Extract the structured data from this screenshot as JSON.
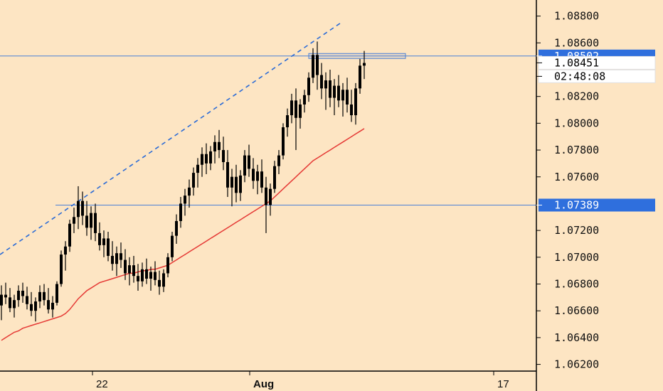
{
  "chart_data": {
    "type": "candlestick",
    "symbol": "",
    "y_ticks": [
      "1.08800",
      "1.08600",
      "1.08200",
      "1.08000",
      "1.07800",
      "1.07600",
      "1.07200",
      "1.07000",
      "1.06800",
      "1.06600",
      "1.06400",
      "1.06200"
    ],
    "x_ticks": [
      "22",
      "Aug",
      "17"
    ],
    "ylim": [
      1.0615,
      1.0892
    ],
    "price_levels": {
      "current_price": "1.08451",
      "countdown": "02:48:08",
      "resistance": "1.08502",
      "support": "1.07389"
    },
    "candles": [
      [
        1.0664,
        1.0679,
        1.0653,
        1.0672
      ],
      [
        1.0672,
        1.0681,
        1.0665,
        1.067
      ],
      [
        1.067,
        1.0677,
        1.0659,
        1.0662
      ],
      [
        1.0662,
        1.0672,
        1.0655,
        1.0668
      ],
      [
        1.0668,
        1.0679,
        1.0663,
        1.0675
      ],
      [
        1.0675,
        1.0681,
        1.0666,
        1.0671
      ],
      [
        1.0671,
        1.0678,
        1.0661,
        1.0665
      ],
      [
        1.0665,
        1.0674,
        1.0656,
        1.066
      ],
      [
        1.066,
        1.067,
        1.0652,
        1.0667
      ],
      [
        1.0667,
        1.0679,
        1.0662,
        1.0674
      ],
      [
        1.0674,
        1.068,
        1.0664,
        1.0668
      ],
      [
        1.0668,
        1.0677,
        1.0658,
        1.0661
      ],
      [
        1.0661,
        1.0671,
        1.0655,
        1.0666
      ],
      [
        1.0666,
        1.0682,
        1.0664,
        1.068
      ],
      [
        1.068,
        1.0705,
        1.0678,
        1.0702
      ],
      [
        1.0702,
        1.0712,
        1.069,
        1.0708
      ],
      [
        1.0708,
        1.0728,
        1.0704,
        1.0725
      ],
      [
        1.0725,
        1.0737,
        1.0718,
        1.073
      ],
      [
        1.073,
        1.0753,
        1.0721,
        1.0742
      ],
      [
        1.0742,
        1.0749,
        1.0724,
        1.0731
      ],
      [
        1.0731,
        1.0742,
        1.0716,
        1.0722
      ],
      [
        1.0722,
        1.0738,
        1.0713,
        1.0733
      ],
      [
        1.0733,
        1.074,
        1.0712,
        1.0718
      ],
      [
        1.0718,
        1.0726,
        1.0705,
        1.0709
      ],
      [
        1.0709,
        1.072,
        1.07,
        1.0714
      ],
      [
        1.0714,
        1.0719,
        1.0697,
        1.0701
      ],
      [
        1.0701,
        1.0712,
        1.069,
        1.0695
      ],
      [
        1.0695,
        1.0708,
        1.0686,
        1.0703
      ],
      [
        1.0703,
        1.0711,
        1.0692,
        1.0698
      ],
      [
        1.0698,
        1.0706,
        1.0683,
        1.0688
      ],
      [
        1.0688,
        1.07,
        1.0679,
        1.0694
      ],
      [
        1.0694,
        1.0701,
        1.0681,
        1.0686
      ],
      [
        1.0686,
        1.0695,
        1.0675,
        1.0682
      ],
      [
        1.0682,
        1.0696,
        1.0678,
        1.0691
      ],
      [
        1.0691,
        1.0699,
        1.068,
        1.0684
      ],
      [
        1.0684,
        1.0693,
        1.0675,
        1.0689
      ],
      [
        1.0689,
        1.0697,
        1.0679,
        1.0683
      ],
      [
        1.0683,
        1.069,
        1.0672,
        1.0678
      ],
      [
        1.0678,
        1.0691,
        1.0674,
        1.0688
      ],
      [
        1.0688,
        1.0703,
        1.0685,
        1.07
      ],
      [
        1.07,
        1.0719,
        1.0697,
        1.0716
      ],
      [
        1.0716,
        1.0732,
        1.071,
        1.0727
      ],
      [
        1.0727,
        1.0745,
        1.0722,
        1.074
      ],
      [
        1.074,
        1.0751,
        1.0731,
        1.0746
      ],
      [
        1.0746,
        1.0758,
        1.0737,
        1.0752
      ],
      [
        1.0752,
        1.0767,
        1.0746,
        1.0763
      ],
      [
        1.0763,
        1.0774,
        1.0752,
        1.0769
      ],
      [
        1.0769,
        1.0782,
        1.076,
        1.0777
      ],
      [
        1.0777,
        1.0785,
        1.0762,
        1.077
      ],
      [
        1.077,
        1.0783,
        1.0765,
        1.0779
      ],
      [
        1.0779,
        1.0791,
        1.077,
        1.0786
      ],
      [
        1.0786,
        1.0795,
        1.0774,
        1.078
      ],
      [
        1.078,
        1.079,
        1.0765,
        1.0771
      ],
      [
        1.0771,
        1.078,
        1.0745,
        1.0752
      ],
      [
        1.0752,
        1.0766,
        1.0738,
        1.076
      ],
      [
        1.076,
        1.0769,
        1.0741,
        1.0748
      ],
      [
        1.0748,
        1.0765,
        1.0742,
        1.0761
      ],
      [
        1.0761,
        1.078,
        1.0756,
        1.0776
      ],
      [
        1.0776,
        1.0784,
        1.076,
        1.0766
      ],
      [
        1.0766,
        1.0774,
        1.0751,
        1.0757
      ],
      [
        1.0757,
        1.0769,
        1.0747,
        1.0764
      ],
      [
        1.0764,
        1.0773,
        1.0748,
        1.0752
      ],
      [
        1.0752,
        1.076,
        1.0718,
        1.0739
      ],
      [
        1.0739,
        1.0755,
        1.0731,
        1.0751
      ],
      [
        1.0751,
        1.0772,
        1.0748,
        1.0768
      ],
      [
        1.0768,
        1.078,
        1.0762,
        1.0776
      ],
      [
        1.0776,
        1.08,
        1.0773,
        1.0797
      ],
      [
        1.0797,
        1.0811,
        1.079,
        1.0806
      ],
      [
        1.0806,
        1.0822,
        1.08,
        1.0817
      ],
      [
        1.0817,
        1.0826,
        1.078,
        1.0804
      ],
      [
        1.0804,
        1.0818,
        1.0796,
        1.0814
      ],
      [
        1.0814,
        1.0825,
        1.0808,
        1.0821
      ],
      [
        1.0821,
        1.0838,
        1.0816,
        1.0834
      ],
      [
        1.0834,
        1.0856,
        1.083,
        1.0851
      ],
      [
        1.0851,
        1.0861,
        1.0825,
        1.0836
      ],
      [
        1.0836,
        1.0845,
        1.0818,
        1.0826
      ],
      [
        1.0826,
        1.0838,
        1.081,
        1.0832
      ],
      [
        1.0832,
        1.084,
        1.0812,
        1.0819
      ],
      [
        1.0819,
        1.0833,
        1.0806,
        1.0828
      ],
      [
        1.0828,
        1.0836,
        1.0812,
        1.0817
      ],
      [
        1.0817,
        1.083,
        1.0805,
        1.0825
      ],
      [
        1.0825,
        1.0834,
        1.0808,
        1.0814
      ],
      [
        1.0814,
        1.0825,
        1.0801,
        1.0806
      ],
      [
        1.0806,
        1.083,
        1.0799,
        1.0826
      ],
      [
        1.0826,
        1.0848,
        1.0822,
        1.0843
      ],
      [
        1.0843,
        1.0854,
        1.0833,
        1.0845
      ]
    ],
    "moving_average": [
      1.0638,
      1.064,
      1.0642,
      1.0644,
      1.0645,
      1.0647,
      1.0648,
      1.0649,
      1.065,
      1.0651,
      1.0652,
      1.0653,
      1.0654,
      1.0655,
      1.0656,
      1.0658,
      1.0661,
      1.0665,
      1.0669,
      1.0672,
      1.0675,
      1.0677,
      1.0679,
      1.0681,
      1.0682,
      1.0683,
      1.0684,
      1.0685,
      1.0686,
      1.0687,
      1.0688,
      1.0688,
      1.0689,
      1.069,
      1.069,
      1.0691,
      1.0691,
      1.0692,
      1.0693,
      1.0694,
      1.0696,
      1.0698,
      1.07,
      1.0702,
      1.0704,
      1.0706,
      1.0708,
      1.071,
      1.0712,
      1.0714,
      1.0716,
      1.0718,
      1.072,
      1.0722,
      1.0724,
      1.0726,
      1.0728,
      1.073,
      1.0732,
      1.0734,
      1.0736,
      1.0738,
      1.074,
      1.0742,
      1.0745,
      1.0748,
      1.0751,
      1.0754,
      1.0757,
      1.076,
      1.0763,
      1.0766,
      1.0769,
      1.0772,
      1.0774,
      1.0776,
      1.0778,
      1.078,
      1.0782,
      1.0784,
      1.0786,
      1.0788,
      1.079,
      1.0792,
      1.0794,
      1.0796
    ],
    "colors": {
      "background": "#fde5c3",
      "candle": "#000000",
      "moving_average": "#e53935",
      "trendline": "#2b6bd6",
      "level_line": "#4a7fd6",
      "badge": "#2f6fdd",
      "axis_line": "#000000"
    }
  }
}
